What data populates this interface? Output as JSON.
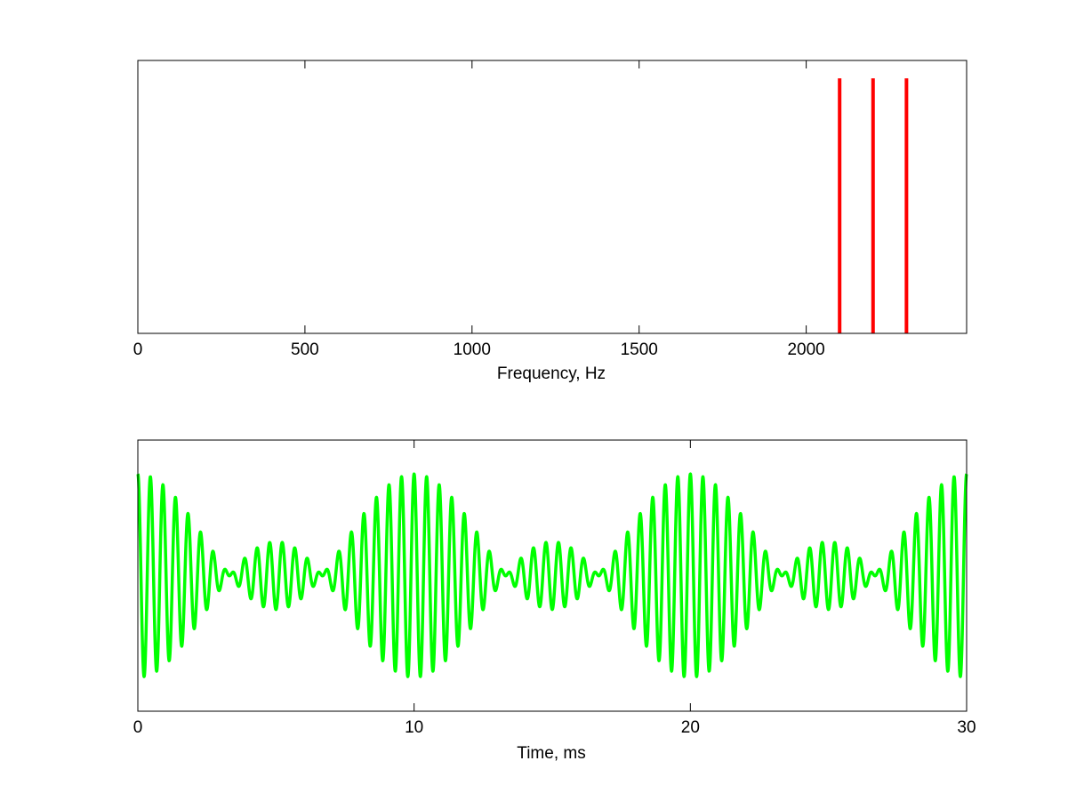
{
  "chart_data": [
    {
      "type": "stem",
      "xlabel": "Frequency, Hz",
      "x": [
        2100,
        2200,
        2300
      ],
      "values": [
        1,
        1,
        1
      ],
      "color": "#ff0000",
      "xlim": [
        0,
        2480
      ],
      "ylim": [
        0,
        1.07
      ],
      "xticks": [
        0,
        500,
        1000,
        1500,
        2000
      ]
    },
    {
      "type": "line",
      "xlabel": "Time, ms",
      "color": "#00ff00",
      "xlim": [
        0,
        30
      ],
      "ylim": [
        -4,
        4
      ],
      "xticks": [
        0,
        10,
        20,
        30
      ]
    }
  ]
}
